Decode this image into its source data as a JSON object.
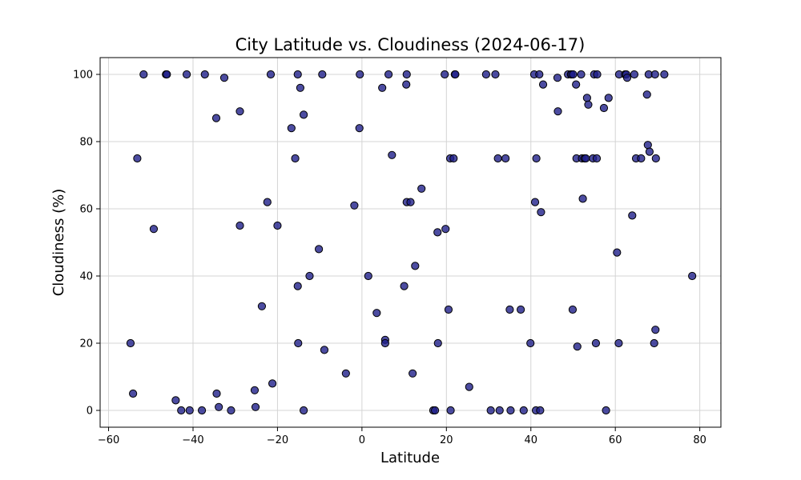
{
  "chart_data": {
    "type": "scatter",
    "title": "City Latitude vs. Cloudiness (2024-06-17)",
    "xlabel": "Latitude",
    "ylabel": "Cloudiness (%)",
    "xlim": [
      -62,
      85
    ],
    "ylim": [
      -5,
      105
    ],
    "xticks": [
      -60,
      -40,
      -20,
      0,
      20,
      40,
      60,
      80
    ],
    "yticks": [
      0,
      20,
      40,
      60,
      80,
      100
    ],
    "grid": true,
    "marker_color": "#1f1f8a",
    "marker_edge_color": "#000000",
    "points": [
      [
        -54.8,
        20
      ],
      [
        -54.2,
        5
      ],
      [
        -53.2,
        75
      ],
      [
        -51.7,
        100
      ],
      [
        -49.3,
        54
      ],
      [
        -46.4,
        100
      ],
      [
        -46.2,
        100
      ],
      [
        -44.1,
        3
      ],
      [
        -42.8,
        0
      ],
      [
        -41.5,
        100
      ],
      [
        -40.8,
        0
      ],
      [
        -37.9,
        0
      ],
      [
        -37.2,
        100
      ],
      [
        -34.5,
        87
      ],
      [
        -34.4,
        5
      ],
      [
        -33.9,
        1
      ],
      [
        -32.6,
        99
      ],
      [
        -31.0,
        0
      ],
      [
        -28.9,
        89
      ],
      [
        -28.9,
        55
      ],
      [
        -25.4,
        6
      ],
      [
        -25.2,
        1
      ],
      [
        -23.7,
        31
      ],
      [
        -22.4,
        62
      ],
      [
        -21.6,
        100
      ],
      [
        -21.2,
        8
      ],
      [
        -20.0,
        55
      ],
      [
        -16.7,
        84
      ],
      [
        -15.8,
        75
      ],
      [
        -15.2,
        100
      ],
      [
        -15.2,
        37
      ],
      [
        -15.1,
        20
      ],
      [
        -14.6,
        96
      ],
      [
        -13.8,
        88
      ],
      [
        -13.8,
        0
      ],
      [
        -12.4,
        40
      ],
      [
        -10.2,
        48
      ],
      [
        -9.4,
        100
      ],
      [
        -8.9,
        18
      ],
      [
        -3.8,
        11
      ],
      [
        -1.8,
        61
      ],
      [
        -0.6,
        84
      ],
      [
        -0.5,
        100
      ],
      [
        1.5,
        40
      ],
      [
        3.5,
        29
      ],
      [
        4.8,
        96
      ],
      [
        5.5,
        21
      ],
      [
        5.5,
        20
      ],
      [
        6.3,
        100
      ],
      [
        7.1,
        76
      ],
      [
        10.0,
        37
      ],
      [
        10.5,
        97
      ],
      [
        10.6,
        100
      ],
      [
        10.6,
        62
      ],
      [
        11.5,
        62
      ],
      [
        12.0,
        11
      ],
      [
        12.6,
        43
      ],
      [
        14.1,
        66
      ],
      [
        16.9,
        0
      ],
      [
        17.3,
        0
      ],
      [
        17.9,
        53
      ],
      [
        18.0,
        20
      ],
      [
        19.6,
        100
      ],
      [
        19.8,
        54
      ],
      [
        20.5,
        30
      ],
      [
        20.9,
        75
      ],
      [
        21.0,
        0
      ],
      [
        21.7,
        75
      ],
      [
        22.0,
        100
      ],
      [
        22.1,
        100
      ],
      [
        25.4,
        7
      ],
      [
        29.4,
        100
      ],
      [
        30.5,
        0
      ],
      [
        31.6,
        100
      ],
      [
        32.2,
        75
      ],
      [
        32.6,
        0
      ],
      [
        34.0,
        75
      ],
      [
        35.0,
        30
      ],
      [
        35.2,
        0
      ],
      [
        37.6,
        30
      ],
      [
        38.3,
        0
      ],
      [
        39.9,
        20
      ],
      [
        40.8,
        100
      ],
      [
        41.0,
        62
      ],
      [
        41.2,
        0
      ],
      [
        41.3,
        75
      ],
      [
        42.0,
        100
      ],
      [
        42.2,
        0
      ],
      [
        42.4,
        59
      ],
      [
        42.9,
        97
      ],
      [
        46.3,
        99
      ],
      [
        46.4,
        89
      ],
      [
        48.8,
        100
      ],
      [
        49.5,
        100
      ],
      [
        49.6,
        100
      ],
      [
        49.9,
        30
      ],
      [
        50.0,
        100
      ],
      [
        50.7,
        97
      ],
      [
        50.8,
        75
      ],
      [
        51.0,
        19
      ],
      [
        51.9,
        100
      ],
      [
        52.1,
        75
      ],
      [
        52.3,
        63
      ],
      [
        52.7,
        75
      ],
      [
        53.0,
        75
      ],
      [
        53.3,
        93
      ],
      [
        53.6,
        91
      ],
      [
        54.7,
        75
      ],
      [
        55.0,
        100
      ],
      [
        55.4,
        20
      ],
      [
        55.6,
        75
      ],
      [
        55.7,
        100
      ],
      [
        57.3,
        90
      ],
      [
        57.8,
        0
      ],
      [
        58.4,
        93
      ],
      [
        60.4,
        47
      ],
      [
        60.8,
        20
      ],
      [
        60.9,
        100
      ],
      [
        62.3,
        100
      ],
      [
        62.6,
        100
      ],
      [
        62.8,
        99
      ],
      [
        64.0,
        58
      ],
      [
        64.5,
        100
      ],
      [
        64.9,
        75
      ],
      [
        66.1,
        75
      ],
      [
        67.5,
        94
      ],
      [
        67.7,
        79
      ],
      [
        67.9,
        100
      ],
      [
        68.1,
        77
      ],
      [
        69.2,
        20
      ],
      [
        69.4,
        100
      ],
      [
        69.5,
        24
      ],
      [
        69.6,
        75
      ],
      [
        71.6,
        100
      ],
      [
        78.2,
        40
      ]
    ]
  }
}
